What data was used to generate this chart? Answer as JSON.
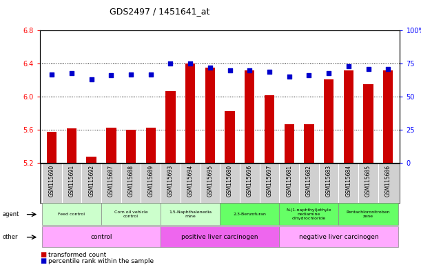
{
  "title": "GDS2497 / 1451641_at",
  "samples": [
    "GSM115690",
    "GSM115691",
    "GSM115692",
    "GSM115687",
    "GSM115688",
    "GSM115689",
    "GSM115693",
    "GSM115694",
    "GSM115695",
    "GSM115680",
    "GSM115696",
    "GSM115697",
    "GSM115681",
    "GSM115682",
    "GSM115683",
    "GSM115684",
    "GSM115685",
    "GSM115686"
  ],
  "transformed_count": [
    5.58,
    5.62,
    5.28,
    5.63,
    5.6,
    5.63,
    6.07,
    6.4,
    6.35,
    5.83,
    6.32,
    6.02,
    5.67,
    5.67,
    6.21,
    6.32,
    6.15,
    6.32
  ],
  "percentile_rank": [
    67,
    68,
    63,
    66,
    67,
    67,
    75,
    75,
    72,
    70,
    70,
    69,
    65,
    66,
    68,
    73,
    71,
    71
  ],
  "ylim_left": [
    5.2,
    6.8
  ],
  "ylim_right": [
    0,
    100
  ],
  "yticks_left": [
    5.2,
    5.6,
    6.0,
    6.4,
    6.8
  ],
  "yticks_right": [
    0,
    25,
    50,
    75,
    100
  ],
  "ytick_labels_right": [
    "0",
    "25",
    "50",
    "75",
    "100%"
  ],
  "bar_color": "#cc0000",
  "dot_color": "#0000cc",
  "agent_groups": [
    {
      "label": "Feed control",
      "start": 0,
      "end": 3,
      "color": "#ccffcc"
    },
    {
      "label": "Corn oil vehicle\ncontrol",
      "start": 3,
      "end": 6,
      "color": "#ccffcc"
    },
    {
      "label": "1,5-Naphthalenedia\nmine",
      "start": 6,
      "end": 9,
      "color": "#ccffcc"
    },
    {
      "label": "2,3-Benzofuran",
      "start": 9,
      "end": 12,
      "color": "#66ff66"
    },
    {
      "label": "N-(1-naphthyl)ethyle\nnediamine\ndihydrochloride",
      "start": 12,
      "end": 15,
      "color": "#66ff66"
    },
    {
      "label": "Pentachloronitroben\nzene",
      "start": 15,
      "end": 18,
      "color": "#66ff66"
    }
  ],
  "other_groups": [
    {
      "label": "control",
      "start": 0,
      "end": 6,
      "color": "#ffaaff"
    },
    {
      "label": "positive liver carcinogen",
      "start": 6,
      "end": 12,
      "color": "#ee66ee"
    },
    {
      "label": "negative liver carcinogen",
      "start": 12,
      "end": 18,
      "color": "#ffaaff"
    }
  ],
  "legend_bar_label": "transformed count",
  "legend_dot_label": "percentile rank within the sample",
  "tick_area_bg": "#d0d0d0"
}
